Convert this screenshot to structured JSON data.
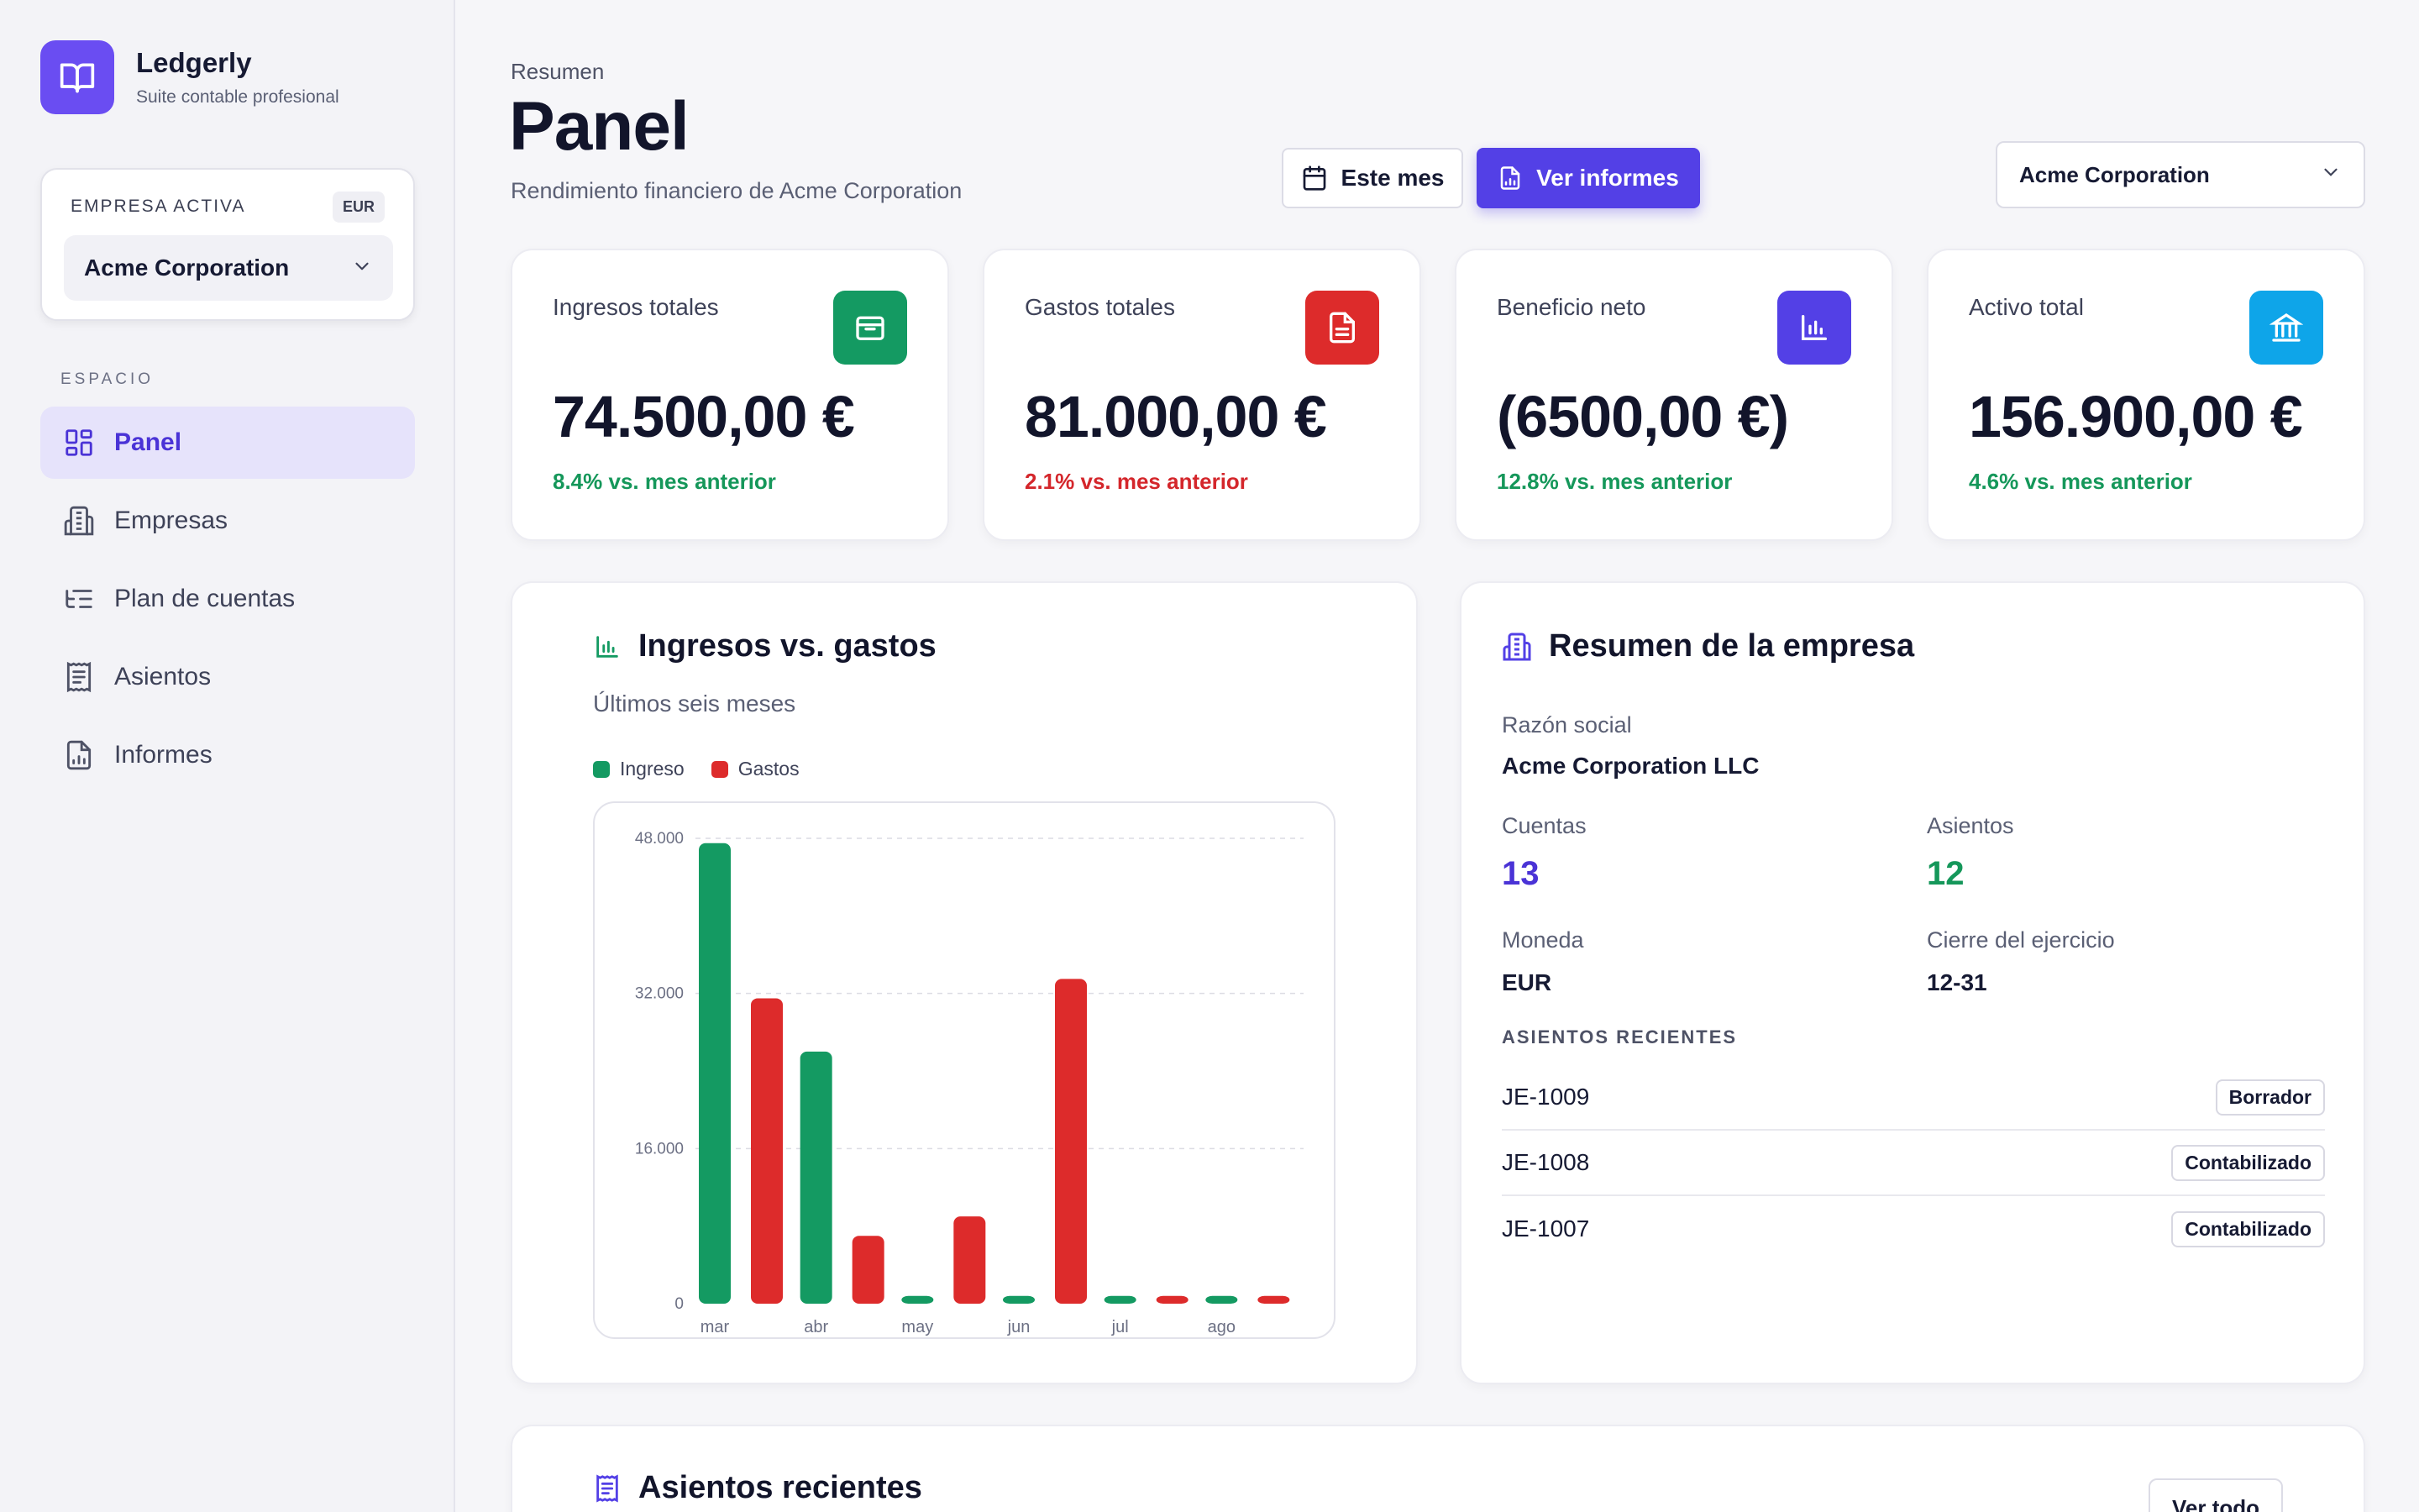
{
  "brand": {
    "name": "Ledgerly",
    "tagline": "Suite contable profesional"
  },
  "sidebar": {
    "company_label": "EMPRESA ACTIVA",
    "currency_badge": "EUR",
    "company_selected": "Acme Corporation",
    "section_label": "ESPACIO",
    "items": [
      {
        "label": "Panel",
        "icon": "dashboard-icon",
        "active": true
      },
      {
        "label": "Empresas",
        "icon": "building-icon",
        "active": false
      },
      {
        "label": "Plan de cuentas",
        "icon": "list-tree-icon",
        "active": false
      },
      {
        "label": "Asientos",
        "icon": "receipt-icon",
        "active": false
      },
      {
        "label": "Informes",
        "icon": "file-chart-icon",
        "active": false
      }
    ]
  },
  "header": {
    "eyebrow": "Resumen",
    "title": "Panel",
    "subtitle": "Rendimiento financiero de Acme Corporation",
    "period_button": "Este mes",
    "reports_button": "Ver informes",
    "company_select": "Acme Corporation"
  },
  "kpis": [
    {
      "label": "Ingresos totales",
      "value": "74.500,00 €",
      "delta": "8.4% vs. mes anterior",
      "trend": "up",
      "icon": "wallet-icon",
      "color": "#149a62"
    },
    {
      "label": "Gastos totales",
      "value": "81.000,00 €",
      "delta": "2.1% vs. mes anterior",
      "trend": "down",
      "icon": "document-icon",
      "color": "#dd2b2b"
    },
    {
      "label": "Beneficio neto",
      "value": "(6500,00 €)",
      "delta": "12.8% vs. mes anterior",
      "trend": "up",
      "icon": "bar-chart-icon",
      "color": "#5340e6"
    },
    {
      "label": "Activo total",
      "value": "156.900,00 €",
      "delta": "4.6% vs. mes anterior",
      "trend": "up",
      "icon": "bank-icon",
      "color": "#0ea5e9"
    }
  ],
  "chart_panel": {
    "title": "Ingresos vs. gastos",
    "subtitle": "Últimos seis meses"
  },
  "chart_data": {
    "type": "bar",
    "categories": [
      "mar",
      "abr",
      "may",
      "jun",
      "jul",
      "ago"
    ],
    "series": [
      {
        "name": "Ingreso",
        "color": "#149a62",
        "values": [
          47500,
          26000,
          800,
          800,
          800,
          800
        ]
      },
      {
        "name": "Gastos",
        "color": "#dd2b2b",
        "values": [
          31500,
          7000,
          9000,
          33500,
          800,
          800
        ]
      }
    ],
    "ylim": [
      0,
      48000
    ],
    "yticks": [
      "0",
      "16.000",
      "32.000",
      "48.000"
    ],
    "ytick_values": [
      0,
      16000,
      32000,
      48000
    ],
    "grid": true,
    "legend": "top-left"
  },
  "company_panel": {
    "title": "Resumen de la empresa",
    "legal_name_label": "Razón social",
    "legal_name": "Acme Corporation LLC",
    "accounts_label": "Cuentas",
    "accounts": "13",
    "entries_label": "Asientos",
    "entries": "12",
    "currency_label": "Moneda",
    "currency": "EUR",
    "fiscal_close_label": "Cierre del ejercicio",
    "fiscal_close": "12-31",
    "recent_label": "ASIENTOS RECIENTES",
    "recent": [
      {
        "id": "JE-1009",
        "status": "Borrador"
      },
      {
        "id": "JE-1008",
        "status": "Contabilizado"
      },
      {
        "id": "JE-1007",
        "status": "Contabilizado"
      }
    ]
  },
  "recent_panel": {
    "title": "Asientos recientes",
    "view_all": "Ver todo"
  }
}
